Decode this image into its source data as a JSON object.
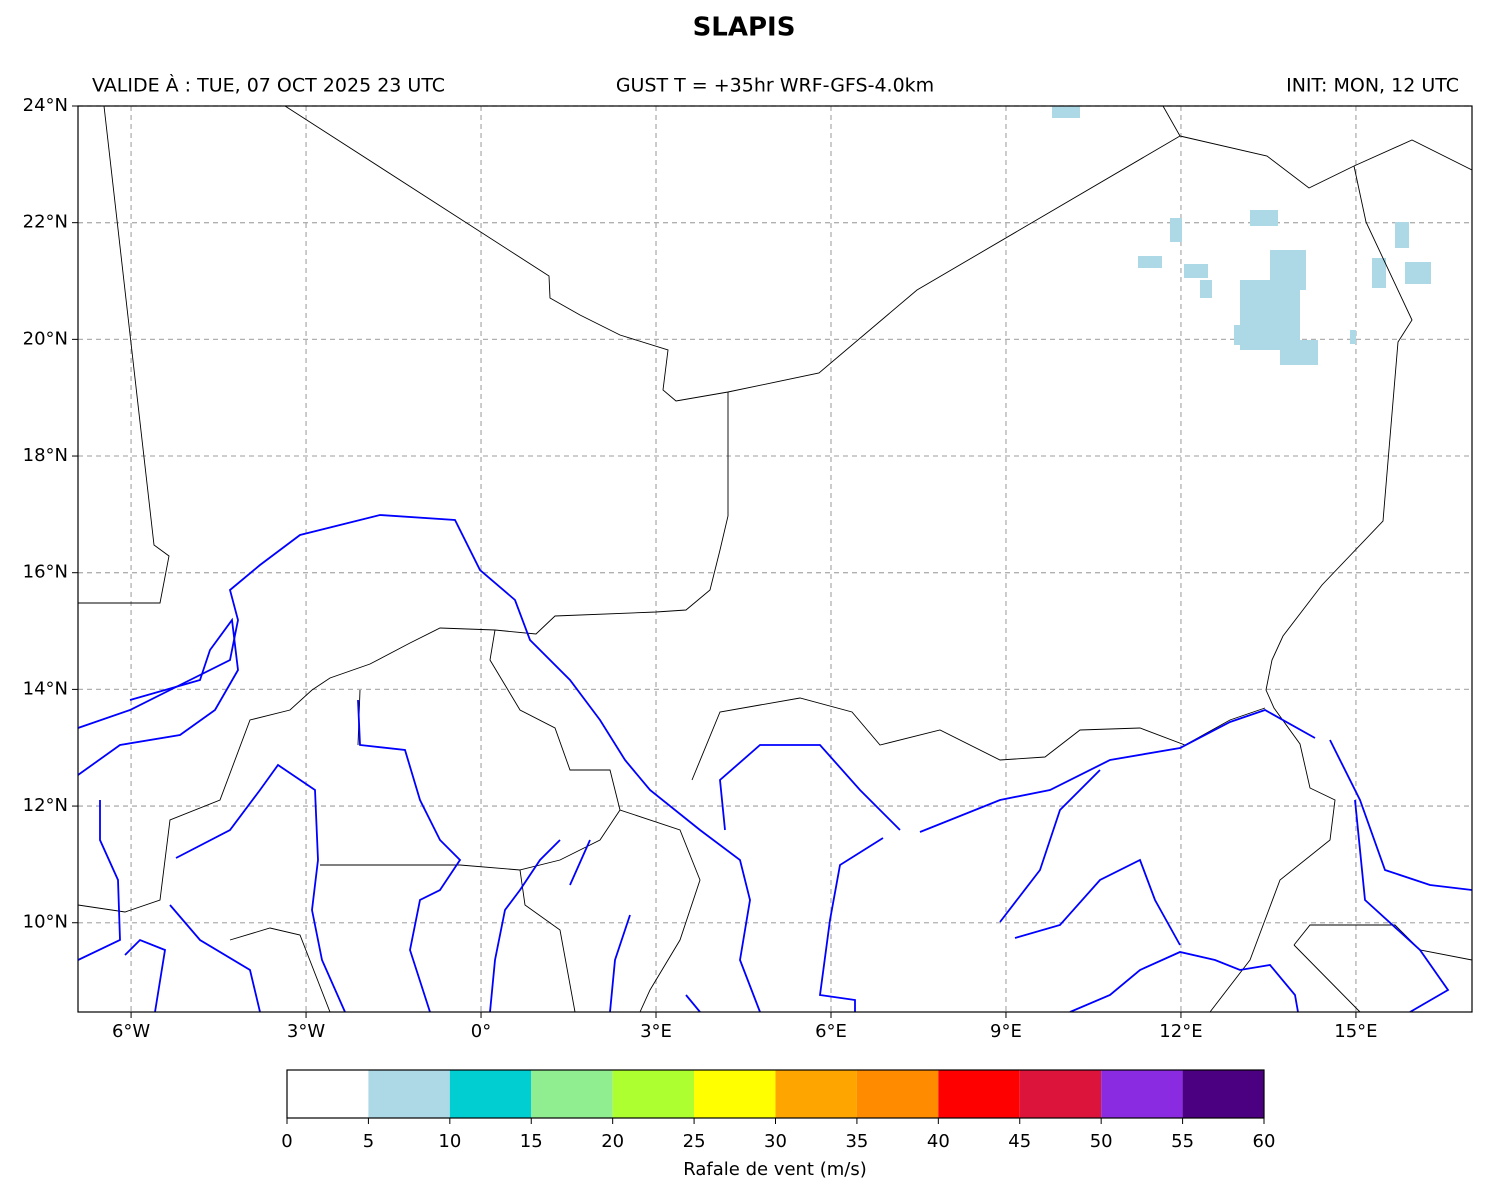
{
  "title": "SLAPIS",
  "header": {
    "left": "VALIDE À : TUE, 07 OCT 2025 23 UTC",
    "center": "GUST T = +35hr WRF-GFS-4.0km",
    "right": "INIT: MON, 12 UTC"
  },
  "map": {
    "xlim": [
      -6.91,
      16.99
    ],
    "ylim": [
      8.47,
      24
    ],
    "grid": true,
    "xticks": [
      {
        "value": -6,
        "label": "6°W"
      },
      {
        "value": -3,
        "label": "3°W"
      },
      {
        "value": 0,
        "label": "0°"
      },
      {
        "value": 3,
        "label": "3°E"
      },
      {
        "value": 6,
        "label": "6°E"
      },
      {
        "value": 9,
        "label": "9°E"
      },
      {
        "value": 12,
        "label": "12°E"
      },
      {
        "value": 15,
        "label": "15°E"
      }
    ],
    "yticks": [
      {
        "value": 10,
        "label": "10°N"
      },
      {
        "value": 12,
        "label": "12°N"
      },
      {
        "value": 14,
        "label": "14°N"
      },
      {
        "value": 16,
        "label": "16°N"
      },
      {
        "value": 18,
        "label": "18°N"
      },
      {
        "value": 20,
        "label": "20°N"
      },
      {
        "value": 22,
        "label": "22°N"
      },
      {
        "value": 24,
        "label": "24°N"
      }
    ]
  },
  "colorbar": {
    "label": "Rafale de vent (m/s)",
    "ticks": [
      0,
      5,
      10,
      15,
      20,
      25,
      30,
      35,
      40,
      45,
      50,
      55,
      60
    ],
    "colors": [
      "#ffffff",
      "#add8e6",
      "#00ced1",
      "#90ee90",
      "#adff2f",
      "#ffff00",
      "#ffa500",
      "#ff8c00",
      "#ff0000",
      "#dc143c",
      "#8a2be2",
      "#4b0082"
    ]
  }
}
